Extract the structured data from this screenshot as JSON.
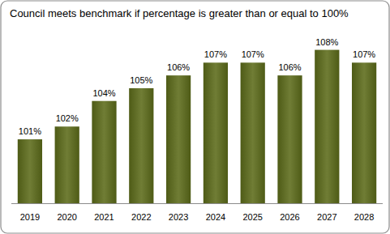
{
  "chart_data": {
    "type": "bar",
    "title": "Council meets benchmark if percentage is greater than or equal to 100%",
    "categories": [
      "2019",
      "2020",
      "2021",
      "2022",
      "2023",
      "2024",
      "2025",
      "2026",
      "2027",
      "2028"
    ],
    "values": [
      101,
      102,
      104,
      105,
      106,
      107,
      107,
      106,
      108,
      107
    ],
    "value_labels": [
      "101%",
      "102%",
      "104%",
      "105%",
      "106%",
      "107%",
      "107%",
      "106%",
      "108%",
      "107%"
    ],
    "color": "#5c6b1a",
    "ylim": [
      96,
      110
    ],
    "data_labels": true,
    "tick_labels": "x",
    "grid": false
  }
}
